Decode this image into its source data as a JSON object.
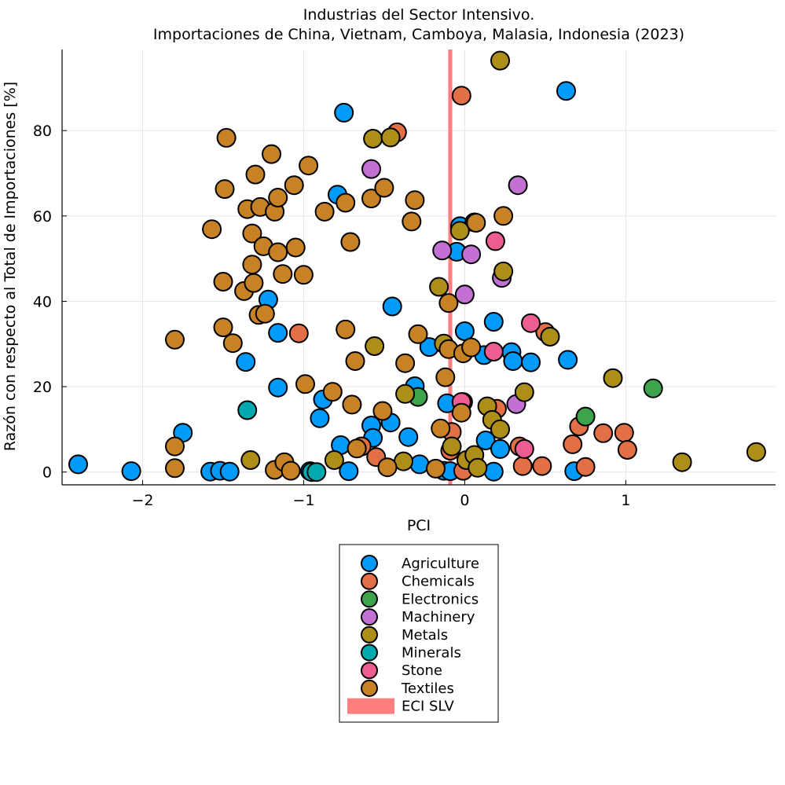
{
  "chart_data": {
    "type": "scatter",
    "title": "Industrias del Sector Intensivo.",
    "subtitle": "Importaciones de China, Vietnam, Camboya, Malasia, Indonesia (2023)",
    "xlabel": "PCI",
    "ylabel": "Razón con respecto al Total de Importaciones [%]",
    "xlim": [
      -2.5,
      1.93
    ],
    "ylim": [
      -3,
      99
    ],
    "xticks": [
      -2,
      -1,
      0,
      1
    ],
    "xtick_labels": [
      "−2",
      "−1",
      "0",
      "1"
    ],
    "yticks": [
      0,
      20,
      40,
      60,
      80
    ],
    "ytick_labels": [
      "0",
      "20",
      "40",
      "60",
      "80"
    ],
    "grid": true,
    "legend_position": "bottom-center",
    "vline": {
      "label": "ECI SLV",
      "x": -0.09,
      "color": "#ff7f7f"
    },
    "series": [
      {
        "name": "Agriculture",
        "color": "#009af9",
        "points": [
          [
            -2.4,
            1.8
          ],
          [
            -2.07,
            0.2
          ],
          [
            -1.75,
            9.2
          ],
          [
            -1.58,
            0.1
          ],
          [
            -1.52,
            0.3
          ],
          [
            -1.46,
            0.1
          ],
          [
            -1.36,
            25.8
          ],
          [
            -1.22,
            40.4
          ],
          [
            -1.16,
            32.6
          ],
          [
            -1.16,
            19.8
          ],
          [
            -0.96,
            0.2
          ],
          [
            -0.9,
            12.6
          ],
          [
            -0.88,
            17.0
          ],
          [
            -0.79,
            65.0
          ],
          [
            -0.77,
            6.3
          ],
          [
            -0.75,
            84.2
          ],
          [
            -0.72,
            0.2
          ],
          [
            -0.58,
            10.9
          ],
          [
            -0.57,
            8.0
          ],
          [
            -0.46,
            11.6
          ],
          [
            -0.45,
            38.8
          ],
          [
            -0.35,
            8.2
          ],
          [
            -0.31,
            20.1
          ],
          [
            -0.28,
            1.8
          ],
          [
            -0.22,
            29.3
          ],
          [
            -0.13,
            0.3
          ],
          [
            -0.09,
            0.2
          ],
          [
            -0.11,
            16.1
          ],
          [
            -0.05,
            51.6
          ],
          [
            -0.03,
            57.6
          ],
          [
            0.0,
            33.0
          ],
          [
            0.12,
            27.4
          ],
          [
            0.13,
            7.4
          ],
          [
            0.18,
            35.2
          ],
          [
            0.18,
            0.1
          ],
          [
            0.22,
            5.4
          ],
          [
            0.29,
            28.1
          ],
          [
            0.3,
            26.0
          ],
          [
            0.41,
            25.7
          ],
          [
            0.63,
            89.3
          ],
          [
            0.64,
            26.3
          ],
          [
            0.68,
            0.2
          ]
        ]
      },
      {
        "name": "Chemicals",
        "color": "#e26f46",
        "points": [
          [
            -1.03,
            32.5
          ],
          [
            -0.64,
            6.0
          ],
          [
            -0.55,
            3.5
          ],
          [
            -0.42,
            79.6
          ],
          [
            -0.08,
            9.4
          ],
          [
            -0.09,
            5.0
          ],
          [
            -0.02,
            88.2
          ],
          [
            -0.01,
            16.4
          ],
          [
            -0.01,
            0.3
          ],
          [
            0.06,
            58.5
          ],
          [
            0.2,
            14.8
          ],
          [
            0.34,
            6.0
          ],
          [
            0.36,
            1.4
          ],
          [
            0.48,
            1.4
          ],
          [
            0.5,
            32.8
          ],
          [
            0.67,
            6.5
          ],
          [
            0.71,
            10.7
          ],
          [
            0.75,
            1.2
          ],
          [
            0.86,
            9.1
          ],
          [
            0.99,
            9.2
          ],
          [
            1.01,
            5.2
          ]
        ]
      },
      {
        "name": "Electronics",
        "color": "#3da44d",
        "points": [
          [
            -0.29,
            17.6
          ],
          [
            0.75,
            13.0
          ],
          [
            1.17,
            19.6
          ]
        ]
      },
      {
        "name": "Machinery",
        "color": "#c271d2",
        "points": [
          [
            -0.58,
            71.0
          ],
          [
            -0.14,
            51.9
          ],
          [
            0.0,
            41.6
          ],
          [
            0.04,
            51.0
          ],
          [
            0.23,
            45.5
          ],
          [
            0.32,
            15.9
          ],
          [
            0.33,
            67.2
          ]
        ]
      },
      {
        "name": "Metals",
        "color": "#ac8e18",
        "points": [
          [
            -1.33,
            2.8
          ],
          [
            -0.81,
            2.8
          ],
          [
            -0.57,
            78.1
          ],
          [
            -0.56,
            29.5
          ],
          [
            -0.46,
            78.4
          ],
          [
            -0.38,
            2.5
          ],
          [
            -0.37,
            18.3
          ],
          [
            -0.16,
            43.4
          ],
          [
            -0.13,
            30.1
          ],
          [
            -0.08,
            6.0
          ],
          [
            -0.03,
            56.5
          ],
          [
            0.01,
            2.8
          ],
          [
            0.06,
            4.0
          ],
          [
            0.08,
            1.0
          ],
          [
            0.14,
            15.4
          ],
          [
            0.17,
            12.2
          ],
          [
            0.22,
            96.4
          ],
          [
            0.22,
            10.0
          ],
          [
            0.24,
            47.0
          ],
          [
            0.37,
            18.7
          ],
          [
            0.53,
            31.7
          ],
          [
            0.92,
            22.0
          ],
          [
            1.35,
            2.3
          ],
          [
            1.81,
            4.7
          ]
        ]
      },
      {
        "name": "Minerals",
        "color": "#00a9ad",
        "points": [
          [
            -1.35,
            14.5
          ],
          [
            -0.95,
            0.0
          ],
          [
            -0.92,
            0.0
          ]
        ]
      },
      {
        "name": "Stone",
        "color": "#ed5d92",
        "points": [
          [
            -0.02,
            16.4
          ],
          [
            0.18,
            28.2
          ],
          [
            0.19,
            54.1
          ],
          [
            0.37,
            5.4
          ],
          [
            0.41,
            34.9
          ]
        ]
      },
      {
        "name": "Textiles",
        "color": "#c68225",
        "points": [
          [
            -1.8,
            31.0
          ],
          [
            -1.8,
            6.0
          ],
          [
            -1.8,
            0.9
          ],
          [
            -1.57,
            56.9
          ],
          [
            -1.49,
            66.3
          ],
          [
            -1.5,
            44.6
          ],
          [
            -1.5,
            33.9
          ],
          [
            -1.48,
            78.3
          ],
          [
            -1.44,
            30.2
          ],
          [
            -1.37,
            42.4
          ],
          [
            -1.35,
            61.6
          ],
          [
            -1.32,
            55.9
          ],
          [
            -1.32,
            48.6
          ],
          [
            -1.31,
            44.3
          ],
          [
            -1.3,
            69.7
          ],
          [
            -1.28,
            36.8
          ],
          [
            -1.27,
            62.1
          ],
          [
            -1.25,
            52.9
          ],
          [
            -1.24,
            37.1
          ],
          [
            -1.2,
            74.5
          ],
          [
            -1.18,
            0.5
          ],
          [
            -1.18,
            61.0
          ],
          [
            -1.16,
            64.3
          ],
          [
            -1.16,
            51.5
          ],
          [
            -1.13,
            46.4
          ],
          [
            -1.12,
            2.3
          ],
          [
            -1.08,
            0.3
          ],
          [
            -1.06,
            67.2
          ],
          [
            -1.05,
            52.6
          ],
          [
            -1.0,
            46.2
          ],
          [
            -0.99,
            20.6
          ],
          [
            -0.97,
            71.8
          ],
          [
            -0.87,
            61.0
          ],
          [
            -0.82,
            18.8
          ],
          [
            -0.74,
            63.1
          ],
          [
            -0.74,
            33.4
          ],
          [
            -0.71,
            53.9
          ],
          [
            -0.7,
            15.8
          ],
          [
            -0.68,
            26.0
          ],
          [
            -0.67,
            5.5
          ],
          [
            -0.58,
            64.1
          ],
          [
            -0.51,
            14.3
          ],
          [
            -0.5,
            66.6
          ],
          [
            -0.48,
            1.1
          ],
          [
            -0.33,
            58.7
          ],
          [
            -0.31,
            63.7
          ],
          [
            -0.29,
            32.3
          ],
          [
            -0.37,
            25.5
          ],
          [
            -0.18,
            0.8
          ],
          [
            -0.15,
            10.2
          ],
          [
            -0.12,
            22.2
          ],
          [
            -0.1,
            39.6
          ],
          [
            -0.1,
            28.8
          ],
          [
            -0.02,
            13.9
          ],
          [
            -0.01,
            27.8
          ],
          [
            0.04,
            29.2
          ],
          [
            0.07,
            58.4
          ],
          [
            0.24,
            60.0
          ]
        ]
      }
    ]
  }
}
